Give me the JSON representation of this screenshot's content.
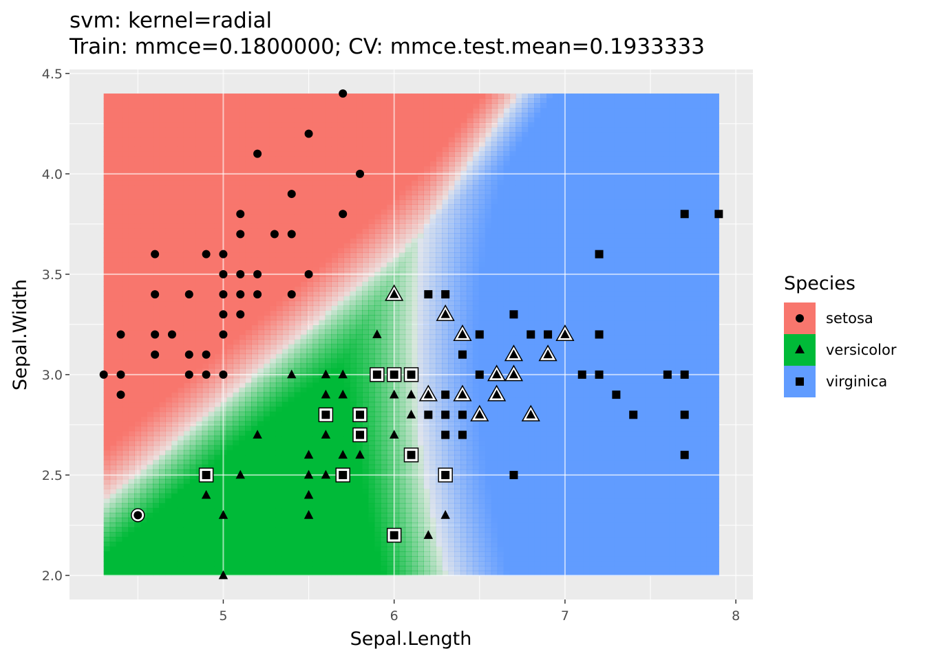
{
  "chart_data": {
    "type": "scatter",
    "title": "svm: kernel=radial",
    "subtitle": "Train: mmce=0.1800000; CV: mmce.test.mean=0.1933333",
    "xlabel": "Sepal.Length",
    "ylabel": "Sepal.Width",
    "xlim": [
      4.1,
      8.1
    ],
    "ylim": [
      1.88,
      4.52
    ],
    "x_ticks": [
      5,
      6,
      7,
      8
    ],
    "x_tick_labels": [
      "5",
      "6",
      "7",
      "8"
    ],
    "y_ticks": [
      2.0,
      2.5,
      3.0,
      3.5,
      4.0,
      4.5
    ],
    "y_tick_labels": [
      "2.0",
      "2.5",
      "3.0",
      "3.5",
      "4.0",
      "4.5"
    ],
    "grid": true,
    "panel_background": "#ebebeb",
    "background_region": {
      "x": [
        4.3,
        7.9
      ],
      "y": [
        2.0,
        4.4
      ]
    },
    "legend": {
      "title": "Species",
      "position": "right",
      "entries": [
        {
          "label": "setosa",
          "color": "#f8766d",
          "shape": "circle"
        },
        {
          "label": "versicolor",
          "color": "#00ba38",
          "shape": "triangle"
        },
        {
          "label": "virginica",
          "color": "#619cff",
          "shape": "square"
        }
      ]
    },
    "series": [
      {
        "name": "setosa",
        "shape": "circle",
        "color": "#f8766d",
        "points": [
          [
            5.7,
            4.4
          ],
          [
            5.5,
            4.2
          ],
          [
            5.2,
            4.1
          ],
          [
            5.8,
            4.0
          ],
          [
            5.4,
            3.9
          ],
          [
            5.1,
            3.8
          ],
          [
            5.7,
            3.8
          ],
          [
            5.1,
            3.7
          ],
          [
            5.3,
            3.7
          ],
          [
            5.4,
            3.7
          ],
          [
            4.6,
            3.6
          ],
          [
            4.9,
            3.6
          ],
          [
            5.0,
            3.6
          ],
          [
            5.0,
            3.5
          ],
          [
            5.1,
            3.5
          ],
          [
            5.2,
            3.5
          ],
          [
            5.5,
            3.5
          ],
          [
            4.6,
            3.4
          ],
          [
            4.8,
            3.4
          ],
          [
            5.0,
            3.4
          ],
          [
            5.1,
            3.4
          ],
          [
            5.2,
            3.4
          ],
          [
            5.4,
            3.4
          ],
          [
            5.0,
            3.3
          ],
          [
            5.1,
            3.3
          ],
          [
            4.4,
            3.2
          ],
          [
            4.6,
            3.2
          ],
          [
            4.7,
            3.2
          ],
          [
            5.0,
            3.2
          ],
          [
            4.6,
            3.1
          ],
          [
            4.8,
            3.1
          ],
          [
            4.9,
            3.1
          ],
          [
            4.3,
            3.0
          ],
          [
            4.4,
            3.0
          ],
          [
            4.8,
            3.0
          ],
          [
            4.9,
            3.0
          ],
          [
            5.0,
            3.0
          ],
          [
            4.4,
            2.9
          ]
        ],
        "misclassified": [
          [
            4.5,
            2.3
          ]
        ]
      },
      {
        "name": "versicolor",
        "shape": "triangle",
        "color": "#00ba38",
        "points": [
          [
            5.9,
            3.2
          ],
          [
            5.4,
            3.0
          ],
          [
            5.6,
            3.0
          ],
          [
            5.7,
            3.0
          ],
          [
            5.6,
            2.9
          ],
          [
            5.7,
            2.9
          ],
          [
            6.0,
            2.9
          ],
          [
            6.1,
            2.9
          ],
          [
            6.1,
            2.8
          ],
          [
            5.2,
            2.7
          ],
          [
            5.6,
            2.7
          ],
          [
            6.0,
            2.7
          ],
          [
            5.5,
            2.6
          ],
          [
            5.7,
            2.6
          ],
          [
            5.8,
            2.6
          ],
          [
            5.1,
            2.5
          ],
          [
            5.5,
            2.5
          ],
          [
            5.6,
            2.5
          ],
          [
            4.9,
            2.4
          ],
          [
            5.5,
            2.4
          ],
          [
            5.0,
            2.3
          ],
          [
            5.5,
            2.3
          ],
          [
            6.3,
            2.3
          ],
          [
            6.2,
            2.2
          ],
          [
            5.0,
            2.0
          ]
        ],
        "misclassified": [
          [
            6.0,
            3.4
          ],
          [
            6.3,
            3.3
          ],
          [
            6.4,
            3.2
          ],
          [
            6.9,
            3.1
          ],
          [
            6.7,
            3.1
          ],
          [
            6.6,
            3.0
          ],
          [
            6.7,
            3.0
          ],
          [
            6.2,
            2.9
          ],
          [
            6.4,
            2.9
          ],
          [
            6.6,
            2.9
          ],
          [
            6.5,
            2.8
          ],
          [
            6.8,
            2.8
          ],
          [
            7.0,
            3.2
          ]
        ]
      },
      {
        "name": "virginica",
        "shape": "square",
        "color": "#619cff",
        "points": [
          [
            7.7,
            3.8
          ],
          [
            7.9,
            3.8
          ],
          [
            7.2,
            3.6
          ],
          [
            6.2,
            3.4
          ],
          [
            6.3,
            3.4
          ],
          [
            6.7,
            3.3
          ],
          [
            6.5,
            3.2
          ],
          [
            6.8,
            3.2
          ],
          [
            6.9,
            3.2
          ],
          [
            7.2,
            3.2
          ],
          [
            6.4,
            3.1
          ],
          [
            6.5,
            3.0
          ],
          [
            7.1,
            3.0
          ],
          [
            7.2,
            3.0
          ],
          [
            7.6,
            3.0
          ],
          [
            7.7,
            3.0
          ],
          [
            6.3,
            2.9
          ],
          [
            7.3,
            2.9
          ],
          [
            6.2,
            2.8
          ],
          [
            6.3,
            2.8
          ],
          [
            6.4,
            2.8
          ],
          [
            7.4,
            2.8
          ],
          [
            7.7,
            2.8
          ],
          [
            6.3,
            2.7
          ],
          [
            6.4,
            2.7
          ],
          [
            7.7,
            2.6
          ],
          [
            6.7,
            2.5
          ]
        ],
        "misclassified": [
          [
            5.9,
            3.0
          ],
          [
            6.0,
            3.0
          ],
          [
            6.1,
            3.0
          ],
          [
            5.6,
            2.8
          ],
          [
            5.8,
            2.8
          ],
          [
            5.8,
            2.7
          ],
          [
            6.1,
            2.6
          ],
          [
            4.9,
            2.5
          ],
          [
            5.7,
            2.5
          ],
          [
            6.3,
            2.5
          ],
          [
            6.0,
            2.2
          ]
        ]
      }
    ]
  }
}
